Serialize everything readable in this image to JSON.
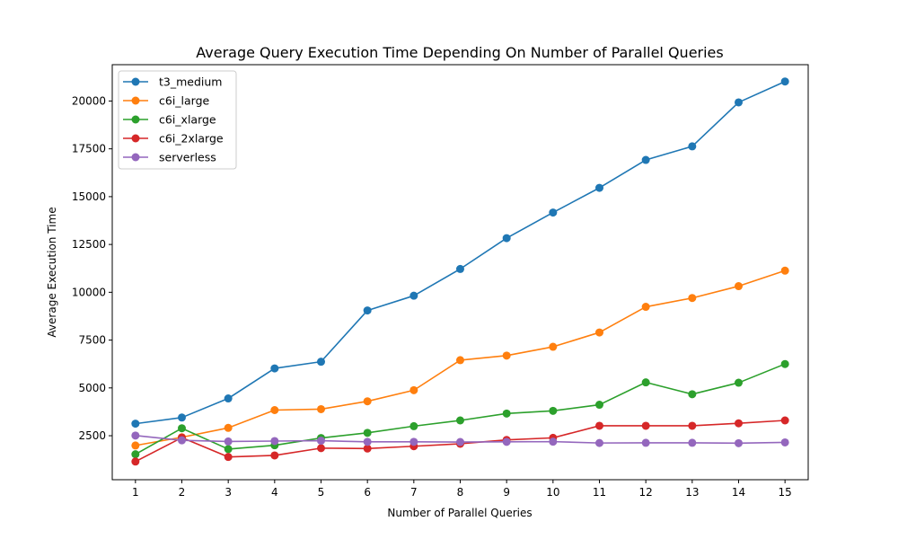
{
  "chart_data": {
    "type": "line",
    "title": "Average Query Execution Time Depending On Number of Parallel Queries",
    "xlabel": "Number of Parallel Queries",
    "ylabel": "Average Execution Time",
    "x": [
      1,
      2,
      3,
      4,
      5,
      6,
      7,
      8,
      9,
      10,
      11,
      12,
      13,
      14,
      15
    ],
    "xlim": [
      0.5,
      15.5
    ],
    "ylim": [
      200,
      21900
    ],
    "yticks": [
      2500,
      5000,
      7500,
      10000,
      12500,
      15000,
      17500,
      20000
    ],
    "grid": false,
    "legend_position": "top-left",
    "series": [
      {
        "name": "t3_medium",
        "color": "#1f77b4",
        "values": [
          3130,
          3450,
          4450,
          6020,
          6370,
          9050,
          9820,
          11220,
          12830,
          14170,
          15460,
          16920,
          17630,
          19930,
          21020
        ]
      },
      {
        "name": "c6i_large",
        "color": "#ff7f0e",
        "values": [
          1990,
          2420,
          2910,
          3840,
          3890,
          4300,
          4880,
          6450,
          6690,
          7150,
          7900,
          9240,
          9700,
          10320,
          11130
        ]
      },
      {
        "name": "c6i_xlarge",
        "color": "#2ca02c",
        "values": [
          1530,
          2890,
          1800,
          2000,
          2380,
          2650,
          3000,
          3300,
          3660,
          3800,
          4120,
          5290,
          4670,
          5270,
          6250
        ]
      },
      {
        "name": "c6i_2xlarge",
        "color": "#d62728",
        "values": [
          1150,
          2400,
          1390,
          1470,
          1850,
          1830,
          1950,
          2080,
          2280,
          2390,
          3020,
          3020,
          3020,
          3150,
          3300
        ]
      },
      {
        "name": "serverless",
        "color": "#9467bd",
        "values": [
          2510,
          2260,
          2200,
          2220,
          2240,
          2180,
          2180,
          2170,
          2180,
          2190,
          2120,
          2130,
          2130,
          2110,
          2150
        ]
      }
    ]
  }
}
